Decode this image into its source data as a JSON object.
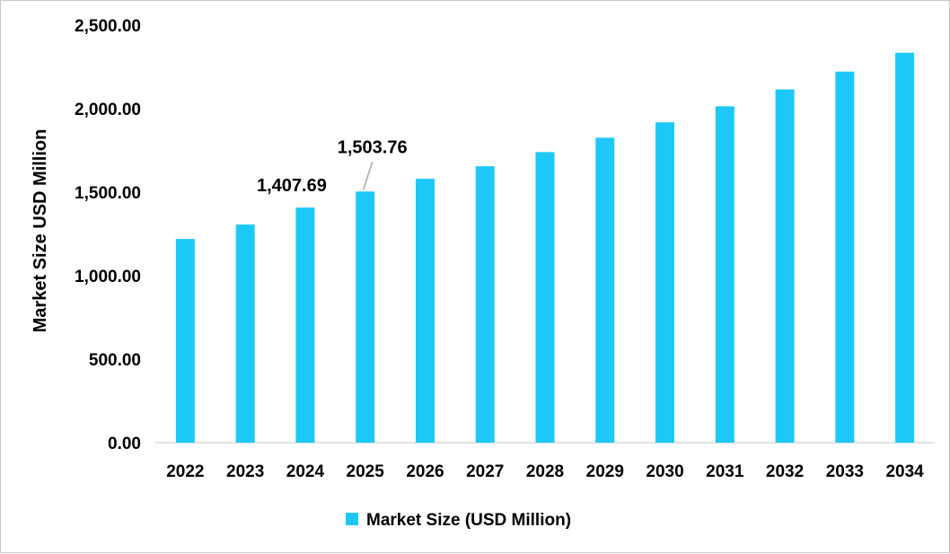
{
  "chart_data": {
    "type": "bar",
    "title": "",
    "xlabel": "",
    "ylabel": "Market Size USD Million",
    "ylim": [
      0,
      2500
    ],
    "yticks": [
      "0.00",
      "500.00",
      "1,000.00",
      "1,500.00",
      "2,000.00",
      "2,500.00"
    ],
    "ytick_values": [
      0,
      500,
      1000,
      1500,
      2000,
      2500
    ],
    "grid": false,
    "legend_position": "bottom",
    "categories": [
      "2022",
      "2023",
      "2024",
      "2025",
      "2026",
      "2027",
      "2028",
      "2029",
      "2030",
      "2031",
      "2032",
      "2033",
      "2034"
    ],
    "series": [
      {
        "name": "Market Size (USD Million)",
        "color": "#1DC8F9",
        "values": [
          1220,
          1306,
          1407.69,
          1503.76,
          1580,
          1655,
          1740,
          1826,
          1918,
          2014,
          2115,
          2222,
          2335
        ]
      }
    ],
    "data_labels": [
      {
        "category": "2024",
        "text": "1,407.69"
      },
      {
        "category": "2025",
        "text": "1,503.76"
      }
    ]
  }
}
